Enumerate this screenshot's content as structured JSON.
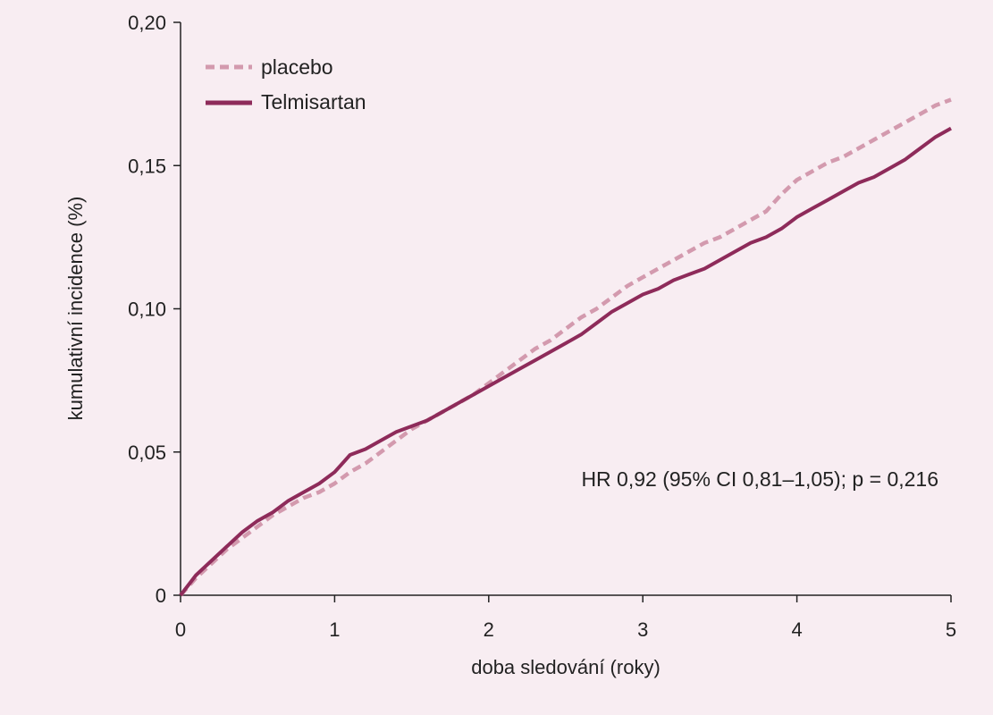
{
  "chart_data": {
    "type": "line",
    "xlabel": "doba sledování (roky)",
    "ylabel": "kumulativní incidence (%)",
    "xlim": [
      0,
      5
    ],
    "ylim": [
      0,
      0.2
    ],
    "x_ticks": [
      0,
      1,
      2,
      3,
      4,
      5
    ],
    "x_tick_labels": [
      "0",
      "1",
      "2",
      "3",
      "4",
      "5"
    ],
    "y_ticks": [
      0,
      0.05,
      0.1,
      0.15,
      0.2
    ],
    "y_tick_labels": [
      "0",
      "0,05",
      "0,10",
      "0,15",
      "0,20"
    ],
    "grid": false,
    "legend_position": "top-left",
    "annotation": "HR 0,92 (95% CI 0,81–1,05); p = 0,216",
    "series": [
      {
        "name": "placebo",
        "style": "dashed",
        "color": "#d39aae",
        "x": [
          0,
          0.1,
          0.2,
          0.3,
          0.4,
          0.5,
          0.6,
          0.7,
          0.8,
          0.9,
          1.0,
          1.1,
          1.2,
          1.3,
          1.4,
          1.5,
          1.6,
          1.7,
          1.8,
          1.9,
          2.0,
          2.1,
          2.2,
          2.3,
          2.4,
          2.5,
          2.6,
          2.7,
          2.8,
          2.9,
          3.0,
          3.1,
          3.2,
          3.3,
          3.4,
          3.5,
          3.6,
          3.7,
          3.8,
          3.9,
          4.0,
          4.1,
          4.2,
          4.3,
          4.4,
          4.5,
          4.6,
          4.7,
          4.8,
          4.9,
          5.0
        ],
        "y": [
          0,
          0.006,
          0.011,
          0.016,
          0.02,
          0.024,
          0.028,
          0.031,
          0.034,
          0.036,
          0.039,
          0.043,
          0.046,
          0.05,
          0.054,
          0.058,
          0.061,
          0.064,
          0.067,
          0.07,
          0.074,
          0.078,
          0.082,
          0.086,
          0.089,
          0.093,
          0.097,
          0.1,
          0.104,
          0.108,
          0.111,
          0.114,
          0.117,
          0.12,
          0.123,
          0.125,
          0.128,
          0.131,
          0.134,
          0.14,
          0.145,
          0.148,
          0.151,
          0.153,
          0.156,
          0.159,
          0.162,
          0.165,
          0.168,
          0.171,
          0.173
        ]
      },
      {
        "name": "Telmisartan",
        "style": "solid",
        "color": "#8e2b5a",
        "x": [
          0,
          0.1,
          0.2,
          0.3,
          0.4,
          0.5,
          0.6,
          0.7,
          0.8,
          0.9,
          1.0,
          1.1,
          1.2,
          1.3,
          1.4,
          1.5,
          1.6,
          1.7,
          1.8,
          1.9,
          2.0,
          2.1,
          2.2,
          2.3,
          2.4,
          2.5,
          2.6,
          2.7,
          2.8,
          2.9,
          3.0,
          3.1,
          3.2,
          3.3,
          3.4,
          3.5,
          3.6,
          3.7,
          3.8,
          3.9,
          4.0,
          4.1,
          4.2,
          4.3,
          4.4,
          4.5,
          4.6,
          4.7,
          4.8,
          4.9,
          5.0
        ],
        "y": [
          0,
          0.007,
          0.012,
          0.017,
          0.022,
          0.026,
          0.029,
          0.033,
          0.036,
          0.039,
          0.043,
          0.049,
          0.051,
          0.054,
          0.057,
          0.059,
          0.061,
          0.064,
          0.067,
          0.07,
          0.073,
          0.076,
          0.079,
          0.082,
          0.085,
          0.088,
          0.091,
          0.095,
          0.099,
          0.102,
          0.105,
          0.107,
          0.11,
          0.112,
          0.114,
          0.117,
          0.12,
          0.123,
          0.125,
          0.128,
          0.132,
          0.135,
          0.138,
          0.141,
          0.144,
          0.146,
          0.149,
          0.152,
          0.156,
          0.16,
          0.163
        ]
      }
    ]
  }
}
